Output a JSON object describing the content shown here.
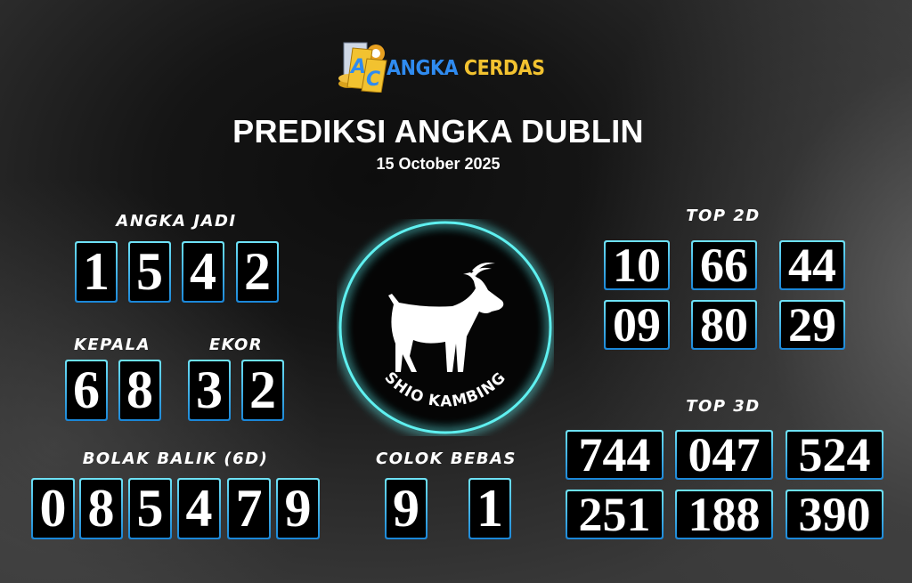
{
  "logo": {
    "text_part1": "ANGKA",
    "text_part2": "CERDAS",
    "mark": "AC",
    "colors": {
      "blue": "#2f8bf0",
      "gold": "#f2c230"
    }
  },
  "header": {
    "title": "PREDIKSI ANGKA DUBLIN",
    "date": "15 October 2025"
  },
  "angka_jadi": {
    "label": "ANGKA JADI",
    "digits": [
      "1",
      "5",
      "4",
      "2"
    ]
  },
  "kepala": {
    "label": "KEPALA",
    "digits": [
      "6",
      "8"
    ]
  },
  "ekor": {
    "label": "EKOR",
    "digits": [
      "3",
      "2"
    ]
  },
  "bolak_balik": {
    "label": "BOLAK BALIK (6D)",
    "digits": [
      "0",
      "8",
      "5",
      "4",
      "7",
      "9"
    ]
  },
  "colok_bebas": {
    "label": "COLOK BEBAS",
    "digits": [
      "9",
      "1"
    ]
  },
  "shio": {
    "label": "SHIO KAMBING",
    "icon": "goat-icon",
    "ring_color": "#5ef0f0"
  },
  "top2d": {
    "label": "TOP 2D",
    "numbers": [
      "10",
      "66",
      "44",
      "09",
      "80",
      "29"
    ]
  },
  "top3d": {
    "label": "TOP 3D",
    "numbers": [
      "744",
      "047",
      "524",
      "251",
      "188",
      "390"
    ]
  },
  "colors": {
    "box_border_top": "#6fe3f7",
    "box_border_bottom": "#1a86d8",
    "box_fill": "#000000"
  }
}
